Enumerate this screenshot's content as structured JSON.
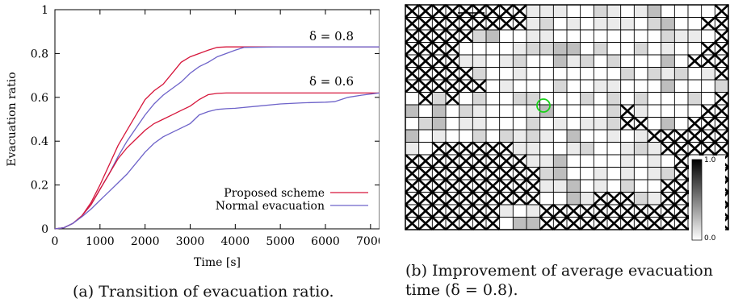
{
  "chart_data": [
    {
      "type": "line",
      "title": "",
      "xlabel": "Time [s]",
      "ylabel": "Evacuation ratio",
      "xlim": [
        0,
        7200
      ],
      "ylim": [
        0,
        1
      ],
      "xticks": [
        "0",
        "1000",
        "2000",
        "3000",
        "4000",
        "5000",
        "6000",
        "7000"
      ],
      "yticks": [
        "0",
        "0.2",
        "0.4",
        "0.6",
        "0.8",
        "1"
      ],
      "grid": false,
      "legend_position": "bottom-right",
      "annotations": [
        "δ = 0.8",
        "δ = 0.6"
      ],
      "series": [
        {
          "name": "Proposed scheme",
          "group": "δ = 0.8",
          "color": "#d6163b",
          "x": [
            0,
            200,
            400,
            600,
            800,
            1000,
            1200,
            1400,
            1600,
            1800,
            2000,
            2200,
            2400,
            2600,
            2800,
            3000,
            3200,
            3400,
            3600,
            3800,
            4000,
            5000,
            6000,
            7200
          ],
          "y": [
            0,
            0.005,
            0.025,
            0.06,
            0.12,
            0.2,
            0.29,
            0.38,
            0.45,
            0.52,
            0.59,
            0.63,
            0.66,
            0.71,
            0.76,
            0.785,
            0.8,
            0.815,
            0.828,
            0.83,
            0.83,
            0.83,
            0.83,
            0.83
          ]
        },
        {
          "name": "Normal evacuation",
          "group": "δ = 0.8",
          "color": "#6e63c9",
          "x": [
            0,
            200,
            400,
            600,
            800,
            1000,
            1200,
            1400,
            1600,
            1800,
            2000,
            2200,
            2400,
            2600,
            2800,
            3000,
            3200,
            3400,
            3600,
            3800,
            4000,
            4200,
            5000,
            6000,
            7200
          ],
          "y": [
            0,
            0.005,
            0.025,
            0.06,
            0.11,
            0.18,
            0.25,
            0.33,
            0.4,
            0.46,
            0.52,
            0.57,
            0.61,
            0.64,
            0.67,
            0.71,
            0.74,
            0.76,
            0.785,
            0.8,
            0.815,
            0.828,
            0.83,
            0.83,
            0.83
          ]
        },
        {
          "name": "Proposed scheme",
          "group": "δ = 0.6",
          "color": "#d6163b",
          "x": [
            0,
            200,
            400,
            600,
            800,
            1000,
            1200,
            1400,
            1600,
            1800,
            2000,
            2200,
            2400,
            2600,
            2800,
            3000,
            3200,
            3400,
            3600,
            3800,
            5000,
            6000,
            7200
          ],
          "y": [
            0,
            0.005,
            0.025,
            0.06,
            0.11,
            0.18,
            0.25,
            0.32,
            0.37,
            0.41,
            0.45,
            0.48,
            0.5,
            0.52,
            0.54,
            0.56,
            0.59,
            0.612,
            0.618,
            0.62,
            0.62,
            0.62,
            0.62
          ]
        },
        {
          "name": "Normal evacuation",
          "group": "δ = 0.6",
          "color": "#6e63c9",
          "x": [
            0,
            200,
            400,
            600,
            800,
            1000,
            1200,
            1400,
            1600,
            1800,
            2000,
            2200,
            2400,
            2600,
            2800,
            3000,
            3200,
            3400,
            3600,
            3800,
            4000,
            4500,
            5000,
            5500,
            6000,
            6200,
            6500,
            6800,
            7200
          ],
          "y": [
            0,
            0.005,
            0.025,
            0.055,
            0.09,
            0.13,
            0.17,
            0.21,
            0.25,
            0.3,
            0.35,
            0.39,
            0.42,
            0.44,
            0.46,
            0.48,
            0.52,
            0.535,
            0.545,
            0.548,
            0.55,
            0.56,
            0.57,
            0.575,
            0.578,
            0.58,
            0.6,
            0.61,
            0.62
          ]
        }
      ]
    },
    {
      "type": "heatmap",
      "title": "",
      "colorbar_ticks": [
        "1.0",
        "0.0"
      ],
      "colormap": [
        "#ffffff",
        "#000000"
      ],
      "legend_position": "bottom-right",
      "marker": "green circle"
    }
  ],
  "captions": {
    "a": "(a) Transition of evacuation ratio.",
    "b": "(b) Improvement of average evacuation time (δ = 0.8)."
  }
}
